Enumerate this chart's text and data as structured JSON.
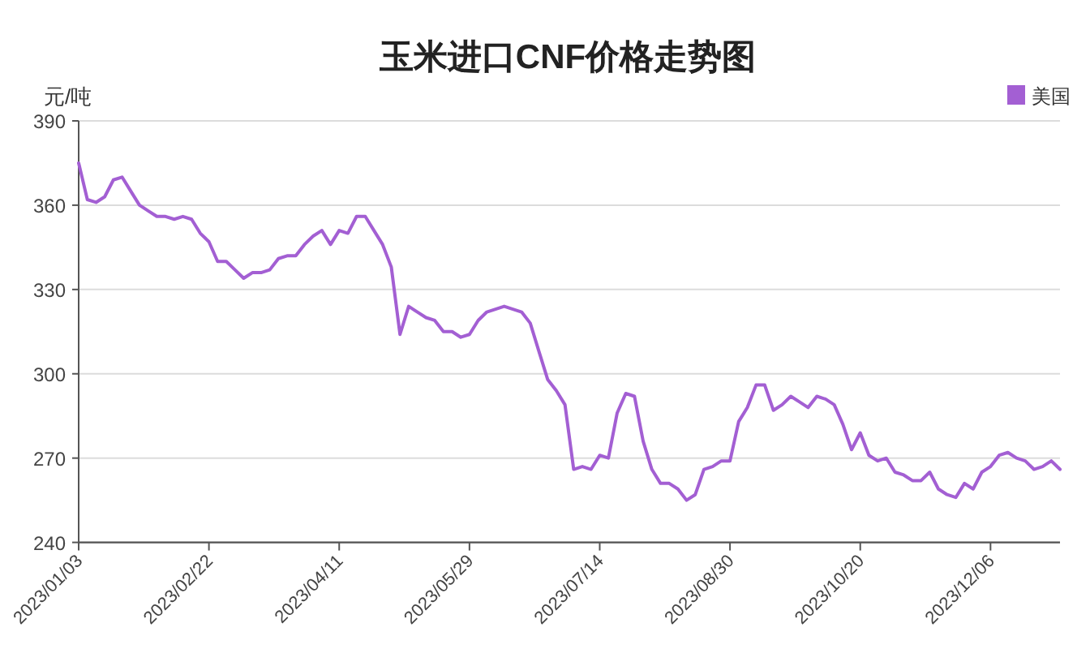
{
  "chart_data": {
    "type": "line",
    "title": "玉米进口CNF价格走势图",
    "ylabel": "元/吨",
    "categories": [
      "2023/01/03",
      null,
      null,
      null,
      null,
      null,
      null,
      null,
      null,
      null,
      null,
      null,
      null,
      null,
      null,
      "2023/02/22",
      null,
      null,
      null,
      null,
      null,
      null,
      null,
      null,
      null,
      null,
      null,
      null,
      null,
      null,
      "2023/04/11",
      null,
      null,
      null,
      null,
      null,
      null,
      null,
      null,
      null,
      null,
      null,
      null,
      null,
      null,
      "2023/05/29",
      null,
      null,
      null,
      null,
      null,
      null,
      null,
      null,
      null,
      null,
      null,
      null,
      null,
      null,
      "2023/07/14",
      null,
      null,
      null,
      null,
      null,
      null,
      null,
      null,
      null,
      null,
      null,
      null,
      null,
      null,
      "2023/08/30",
      null,
      null,
      null,
      null,
      null,
      null,
      null,
      null,
      null,
      null,
      null,
      null,
      null,
      null,
      "2023/10/20",
      null,
      null,
      null,
      null,
      null,
      null,
      null,
      null,
      null,
      null,
      null,
      null,
      null,
      null,
      "2023/12/06",
      null,
      null,
      null,
      null,
      null,
      null,
      null,
      null
    ],
    "series": [
      {
        "name": "美国",
        "color": "#a35fd3",
        "values": [
          375,
          362,
          361,
          363,
          369,
          370,
          365,
          360,
          358,
          356,
          356,
          355,
          356,
          355,
          350,
          347,
          340,
          340,
          337,
          334,
          336,
          336,
          337,
          341,
          342,
          342,
          346,
          349,
          351,
          346,
          351,
          350,
          356,
          356,
          351,
          346,
          338,
          314,
          324,
          322,
          320,
          319,
          315,
          315,
          313,
          314,
          319,
          322,
          323,
          324,
          323,
          322,
          318,
          308,
          298,
          294,
          289,
          266,
          267,
          266,
          271,
          270,
          286,
          293,
          292,
          276,
          266,
          261,
          261,
          259,
          255,
          257,
          266,
          267,
          269,
          269,
          283,
          288,
          296,
          296,
          287,
          289,
          292,
          290,
          288,
          292,
          291,
          289,
          282,
          273,
          279,
          271,
          269,
          270,
          265,
          264,
          262,
          262,
          265,
          259,
          257,
          256,
          261,
          259,
          265,
          267,
          271,
          272,
          270,
          269,
          266,
          267,
          269,
          266
        ]
      }
    ],
    "ylim": [
      240,
      390
    ],
    "yticks": [
      240,
      270,
      300,
      330,
      360,
      390
    ],
    "grid": "y",
    "legend": "top right"
  }
}
